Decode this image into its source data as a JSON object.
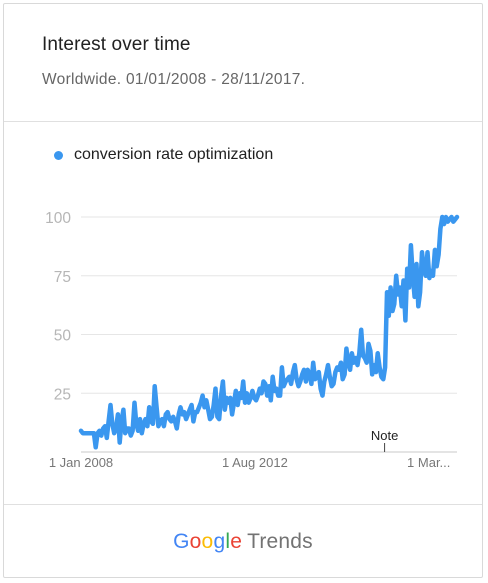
{
  "header": {
    "title": "Interest over time",
    "subtitle": "Worldwide. 01/01/2008 - 28/11/2017."
  },
  "legend": {
    "label": "conversion rate optimization"
  },
  "colors": {
    "series": "#3a97ef",
    "grid": "#e6e6e6",
    "axis_text": "#b6b6b6",
    "tick_text": "#777777"
  },
  "footer": {
    "brand_google": "Google",
    "brand_trends": "Trends"
  },
  "chart_data": {
    "type": "line",
    "title": "Interest over time",
    "x_start": "2008-01-01",
    "x_end": "2017-11-28",
    "x_tick_labels": [
      "1 Jan 2008",
      "1 Aug 2012",
      "1 Mar..."
    ],
    "x_tick_dates": [
      "2008-01-01",
      "2012-08-01",
      "2017-03-01"
    ],
    "ylim": [
      0,
      100
    ],
    "y_ticks": [
      25,
      50,
      75,
      100
    ],
    "grid": true,
    "annotation": {
      "label": "Note",
      "date": "2016-01-01"
    },
    "series": [
      {
        "name": "conversion rate optimization",
        "values": [
          9,
          8,
          8,
          8,
          8,
          8,
          8,
          8,
          2,
          8,
          9,
          7,
          10,
          11,
          6,
          13,
          20,
          12,
          8,
          10,
          16,
          4,
          13,
          18,
          8,
          10,
          10,
          7,
          9,
          21,
          12,
          9,
          14,
          8,
          12,
          14,
          11,
          19,
          13,
          12,
          28,
          19,
          11,
          13,
          14,
          11,
          16,
          17,
          14,
          13,
          15,
          13,
          10,
          16,
          19,
          16,
          17,
          14,
          16,
          18,
          20,
          13,
          17,
          17,
          19,
          21,
          24,
          19,
          22,
          18,
          14,
          15,
          20,
          27,
          15,
          14,
          24,
          30,
          18,
          23,
          21,
          23,
          16,
          21,
          26,
          20,
          25,
          23,
          30,
          21,
          25,
          21,
          23,
          26,
          23,
          22,
          24,
          27,
          25,
          30,
          29,
          24,
          28,
          22,
          32,
          26,
          27,
          24,
          24,
          36,
          28,
          30,
          31,
          32,
          29,
          34,
          37,
          31,
          28,
          30,
          33,
          35,
          30,
          35,
          33,
          29,
          38,
          31,
          32,
          34,
          27,
          24,
          30,
          33,
          37,
          32,
          28,
          29,
          34,
          36,
          35,
          38,
          31,
          33,
          44,
          38,
          35,
          42,
          38,
          40,
          37,
          42,
          52,
          41,
          40,
          38,
          46,
          43,
          33,
          37,
          34,
          42,
          36,
          32,
          31,
          36,
          68,
          58,
          70,
          60,
          63,
          75,
          67,
          70,
          62,
          73,
          56,
          78,
          70,
          88,
          75,
          66,
          80,
          62,
          68,
          85,
          78,
          75,
          85,
          74,
          77,
          75,
          86,
          79,
          84,
          95,
          100,
          97,
          100,
          98,
          99,
          100,
          98,
          99,
          100
        ]
      }
    ]
  }
}
